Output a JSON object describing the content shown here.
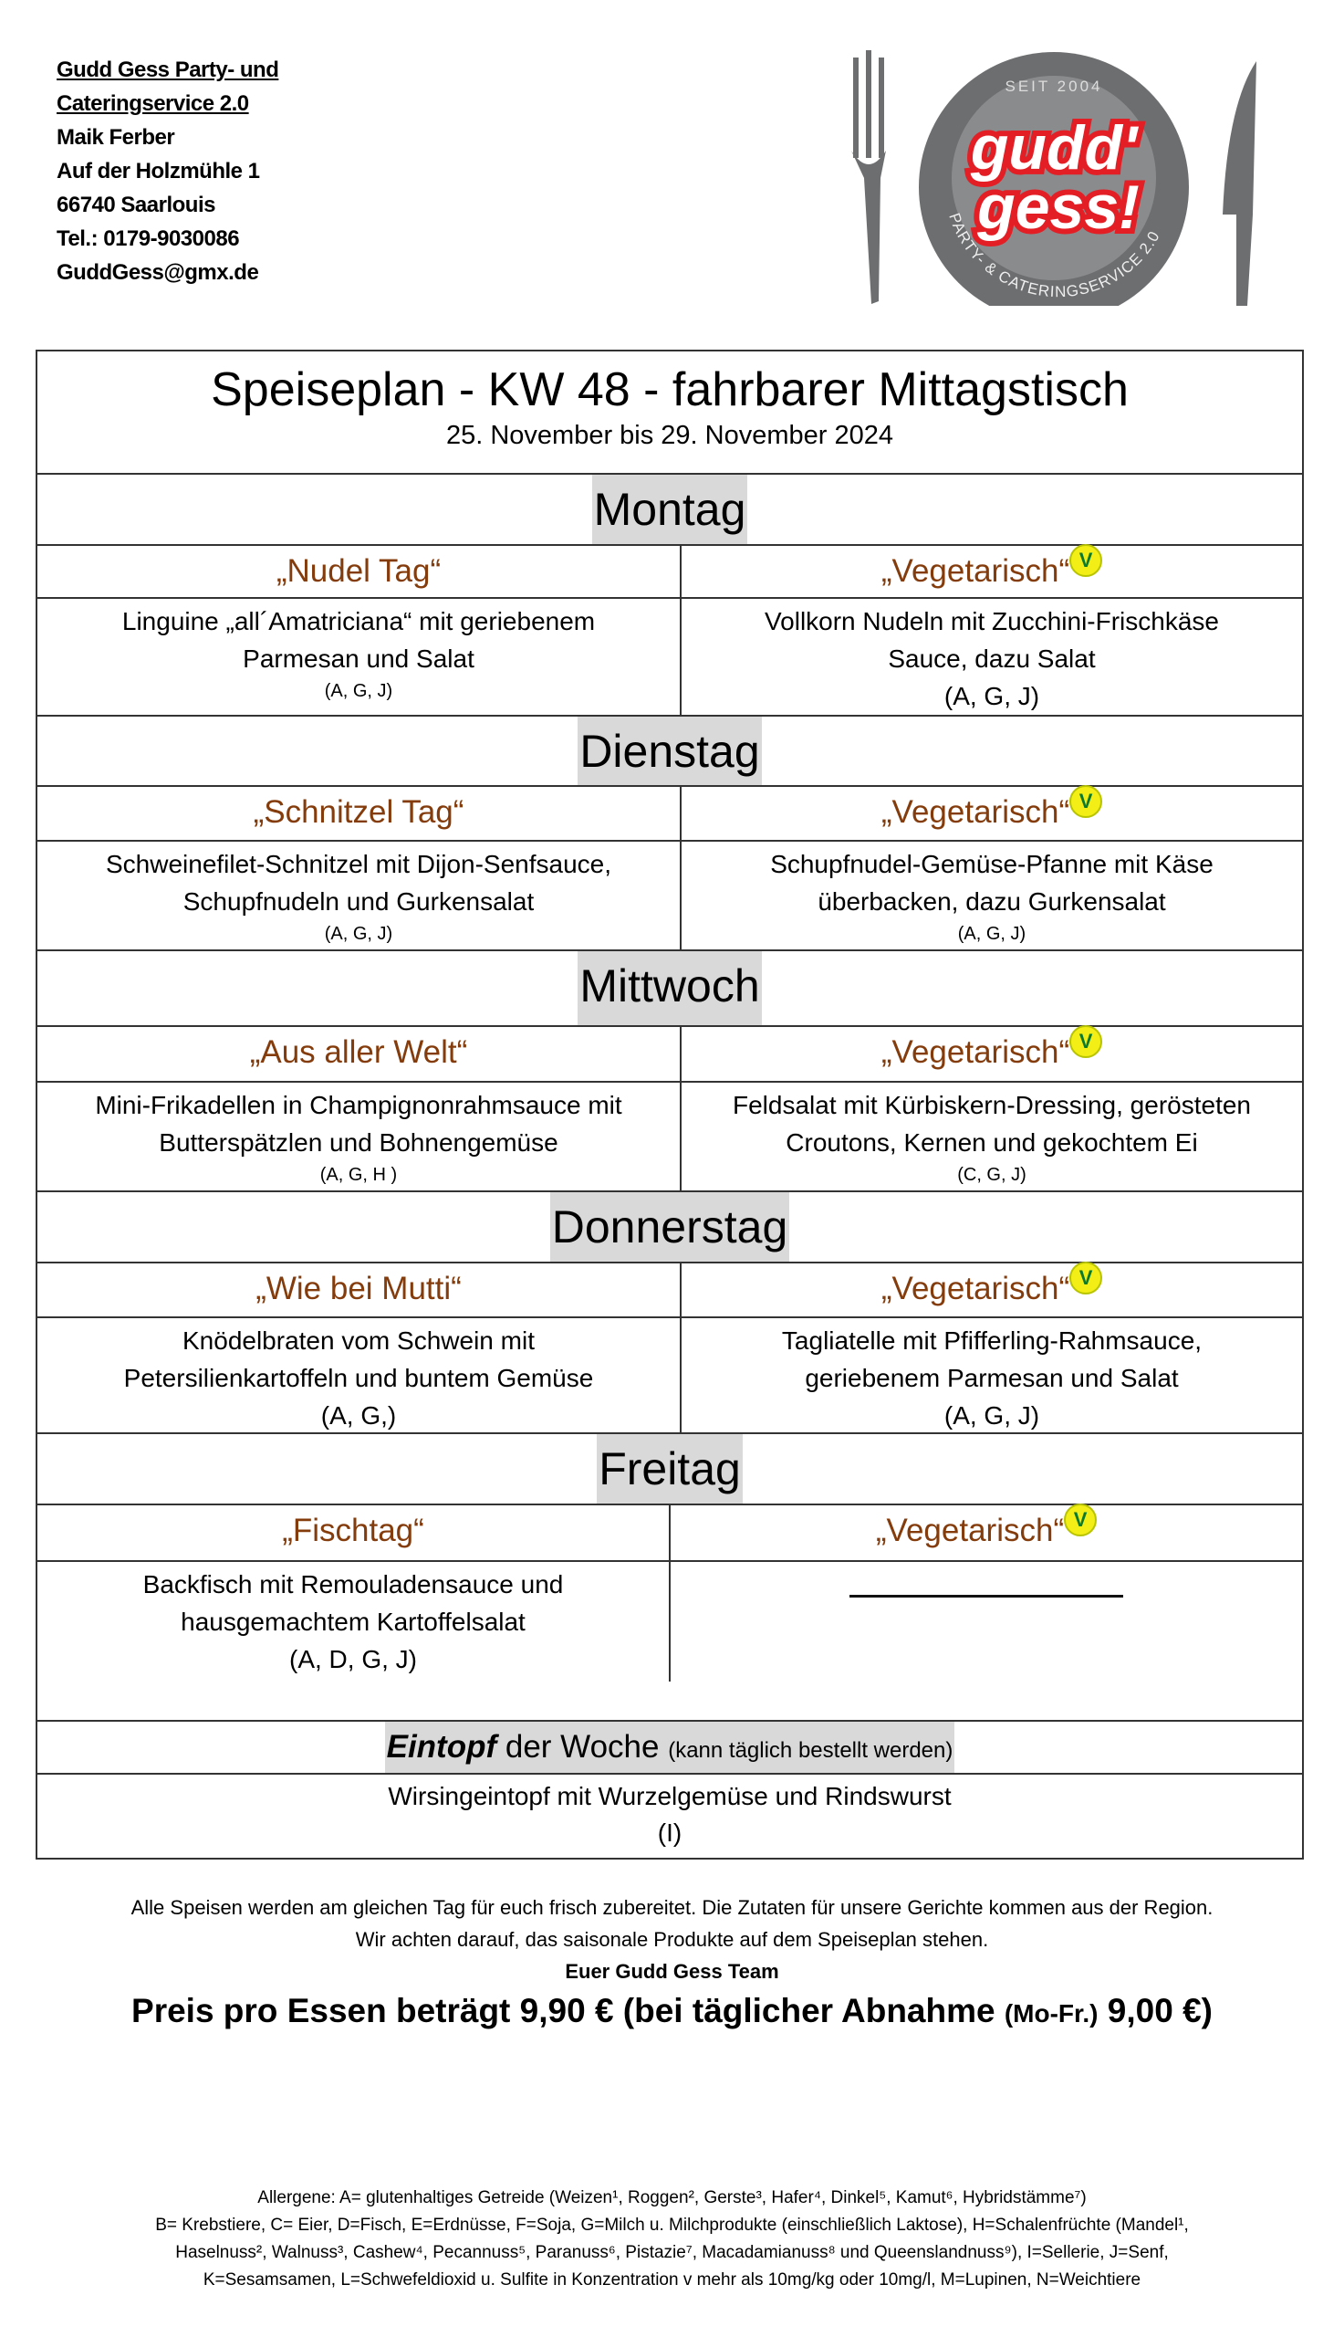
{
  "header": {
    "address": [
      "Gudd Gess Party- und",
      "Cateringservice 2.0",
      "Maik Ferber",
      "Auf der Holzmühle 1",
      "66740 Saarlouis",
      "Tel.: 0179-9030086",
      "GuddGess@gmx.de"
    ],
    "logo": {
      "top_text": "SEIT 2004",
      "brand_line1": "gudd'",
      "brand_line2": "gess!",
      "ring_text": "PARTY- & CATERINGSERVICE 2.0",
      "colors": {
        "plate": "#6d6e70",
        "brand": "#e31e24"
      }
    }
  },
  "menu": {
    "title": "Speiseplan - KW 48 - fahrbarer Mittagstisch",
    "date_range": "25. November bis 29. November 2024",
    "days": [
      {
        "name": "Montag",
        "left": {
          "category": "„Nudel Tag“",
          "dish_lines": [
            "Linguine „all´Amatriciana“ mit geriebenem",
            "Parmesan und Salat"
          ],
          "allergens": "(A, G, J)"
        },
        "right": {
          "category": "„Vegetarisch“",
          "dish_lines": [
            "Vollkorn Nudeln mit Zucchini-Frischkäse",
            "Sauce, dazu Salat"
          ],
          "allergens": "(A, G, J)"
        }
      },
      {
        "name": "Dienstag",
        "left": {
          "category": "„Schnitzel Tag“",
          "dish_lines": [
            "Schweinefilet-Schnitzel mit Dijon-Senfsauce,",
            "Schupfnudeln und Gurkensalat"
          ],
          "allergens": "(A, G, J)"
        },
        "right": {
          "category": "„Vegetarisch“",
          "dish_lines": [
            "Schupfnudel-Gemüse-Pfanne mit Käse",
            "überbacken, dazu Gurkensalat"
          ],
          "allergens": "(A, G, J)"
        }
      },
      {
        "name": "Mittwoch",
        "left": {
          "category": "„Aus aller Welt“",
          "dish_lines": [
            "Mini-Frikadellen in Champignonrahmsauce mit",
            "Butterspätzlen und Bohnengemüse"
          ],
          "allergens": "(A, G, H )"
        },
        "right": {
          "category": "„Vegetarisch“",
          "dish_lines": [
            "Feldsalat mit Kürbiskern-Dressing, gerösteten",
            "Croutons, Kernen und gekochtem Ei"
          ],
          "allergens": "(C, G, J)"
        }
      },
      {
        "name": "Donnerstag",
        "left": {
          "category": "„Wie bei Mutti“",
          "dish_lines": [
            "Knödelbraten vom Schwein mit",
            "Petersilienkartoffeln und buntem Gemüse"
          ],
          "allergens": "(A, G,)"
        },
        "right": {
          "category": "„Vegetarisch“",
          "dish_lines": [
            "Tagliatelle mit Pfifferling-Rahmsauce,",
            "geriebenem Parmesan und Salat"
          ],
          "allergens": "(A, G, J)"
        }
      },
      {
        "name": "Freitag",
        "left": {
          "category": "„Fischtag“",
          "dish_lines": [
            "Backfisch mit Remouladensauce und",
            "hausgemachtem Kartoffelsalat"
          ],
          "allergens": "(A, D, G, J)"
        },
        "right": {
          "category": "„Vegetarisch“"
        }
      }
    ],
    "eintopf": {
      "bold": "Eintopf",
      "rest": " der Woche ",
      "note": "(kann täglich bestellt werden)",
      "dish": "Wirsingeintopf mit Wurzelgemüse und Rindswurst",
      "allergens": "(I)"
    },
    "veg_icon": "vegetarian-v-label-icon",
    "category_color": "#843c0c"
  },
  "footer": {
    "line1": "Alle Speisen werden am gleichen Tag für euch frisch zubereitet. Die Zutaten für unsere Gerichte kommen aus der Region.",
    "line2": "Wir achten darauf, das saisonale Produkte auf dem Speiseplan stehen.",
    "signature": "Euer Gudd Gess Team",
    "price_a": "Preis pro Essen beträgt 9,90 € (bei täglicher Abnahme ",
    "price_b": "(Mo-Fr.)",
    "price_c": " 9,00 €)",
    "allergens": [
      "Allergene: A= glutenhaltiges Getreide (Weizen¹, Roggen², Gerste³, Hafer⁴, Dinkel⁵, Kamut⁶, Hybridstämme⁷)",
      "B= Krebstiere, C= Eier, D=Fisch, E=Erdnüsse, F=Soja, G=Milch u. Milchprodukte (einschließlich Laktose), H=Schalenfrüchte (Mandel¹,",
      "Haselnuss², Walnuss³, Cashew⁴, Pecannuss⁵, Paranuss⁶, Pistazie⁷, Macadamianuss⁸ und Queenslandnuss⁹), I=Sellerie, J=Senf,",
      "K=Sesamsamen, L=Schwefeldioxid u. Sulfite in Konzentration v mehr als 10mg/kg oder 10mg/l, M=Lupinen, N=Weichtiere"
    ]
  }
}
